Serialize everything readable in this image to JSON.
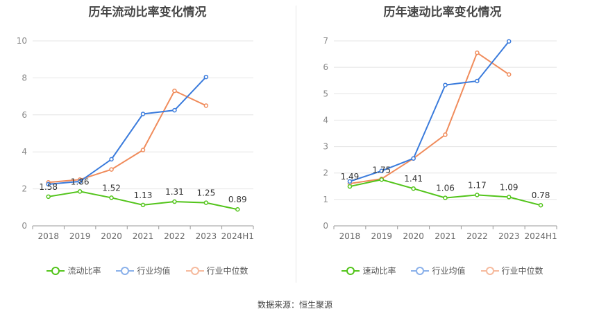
{
  "chart_data": [
    {
      "type": "line",
      "title": "历年流动比率变化情况",
      "categories": [
        "2018",
        "2019",
        "2020",
        "2021",
        "2022",
        "2023",
        "2024H1"
      ],
      "ylim": [
        0,
        10
      ],
      "yticks": [
        0,
        2,
        4,
        6,
        8,
        10
      ],
      "grid": true,
      "legend_position": "bottom",
      "series": [
        {
          "name": "流动比率",
          "color": "#52c41a",
          "labeled": true,
          "values": [
            1.58,
            1.86,
            1.52,
            1.13,
            1.31,
            1.25,
            0.89
          ]
        },
        {
          "name": "行业均值",
          "color": "#3a7bdc",
          "labeled": false,
          "values": [
            2.25,
            2.4,
            3.6,
            6.05,
            6.25,
            8.05,
            null
          ]
        },
        {
          "name": "行业中位数",
          "color": "#f08c5c",
          "labeled": false,
          "values": [
            2.35,
            2.5,
            3.05,
            4.1,
            7.3,
            6.5,
            null
          ]
        }
      ]
    },
    {
      "type": "line",
      "title": "历年速动比率变化情况",
      "categories": [
        "2018",
        "2019",
        "2020",
        "2021",
        "2022",
        "2023",
        "2024H1"
      ],
      "ylim": [
        0,
        7
      ],
      "yticks": [
        0,
        1,
        2,
        3,
        4,
        5,
        6,
        7
      ],
      "grid": true,
      "legend_position": "bottom",
      "series": [
        {
          "name": "速动比率",
          "color": "#52c41a",
          "labeled": true,
          "values": [
            1.49,
            1.75,
            1.41,
            1.06,
            1.17,
            1.09,
            0.78
          ]
        },
        {
          "name": "行业均值",
          "color": "#3a7bdc",
          "labeled": false,
          "values": [
            1.68,
            2.08,
            2.55,
            5.33,
            5.48,
            6.98,
            null
          ]
        },
        {
          "name": "行业中位数",
          "color": "#f08c5c",
          "labeled": false,
          "values": [
            1.6,
            1.78,
            2.55,
            3.45,
            6.55,
            5.73,
            null
          ]
        }
      ]
    }
  ],
  "source": "数据来源：恒生聚源"
}
